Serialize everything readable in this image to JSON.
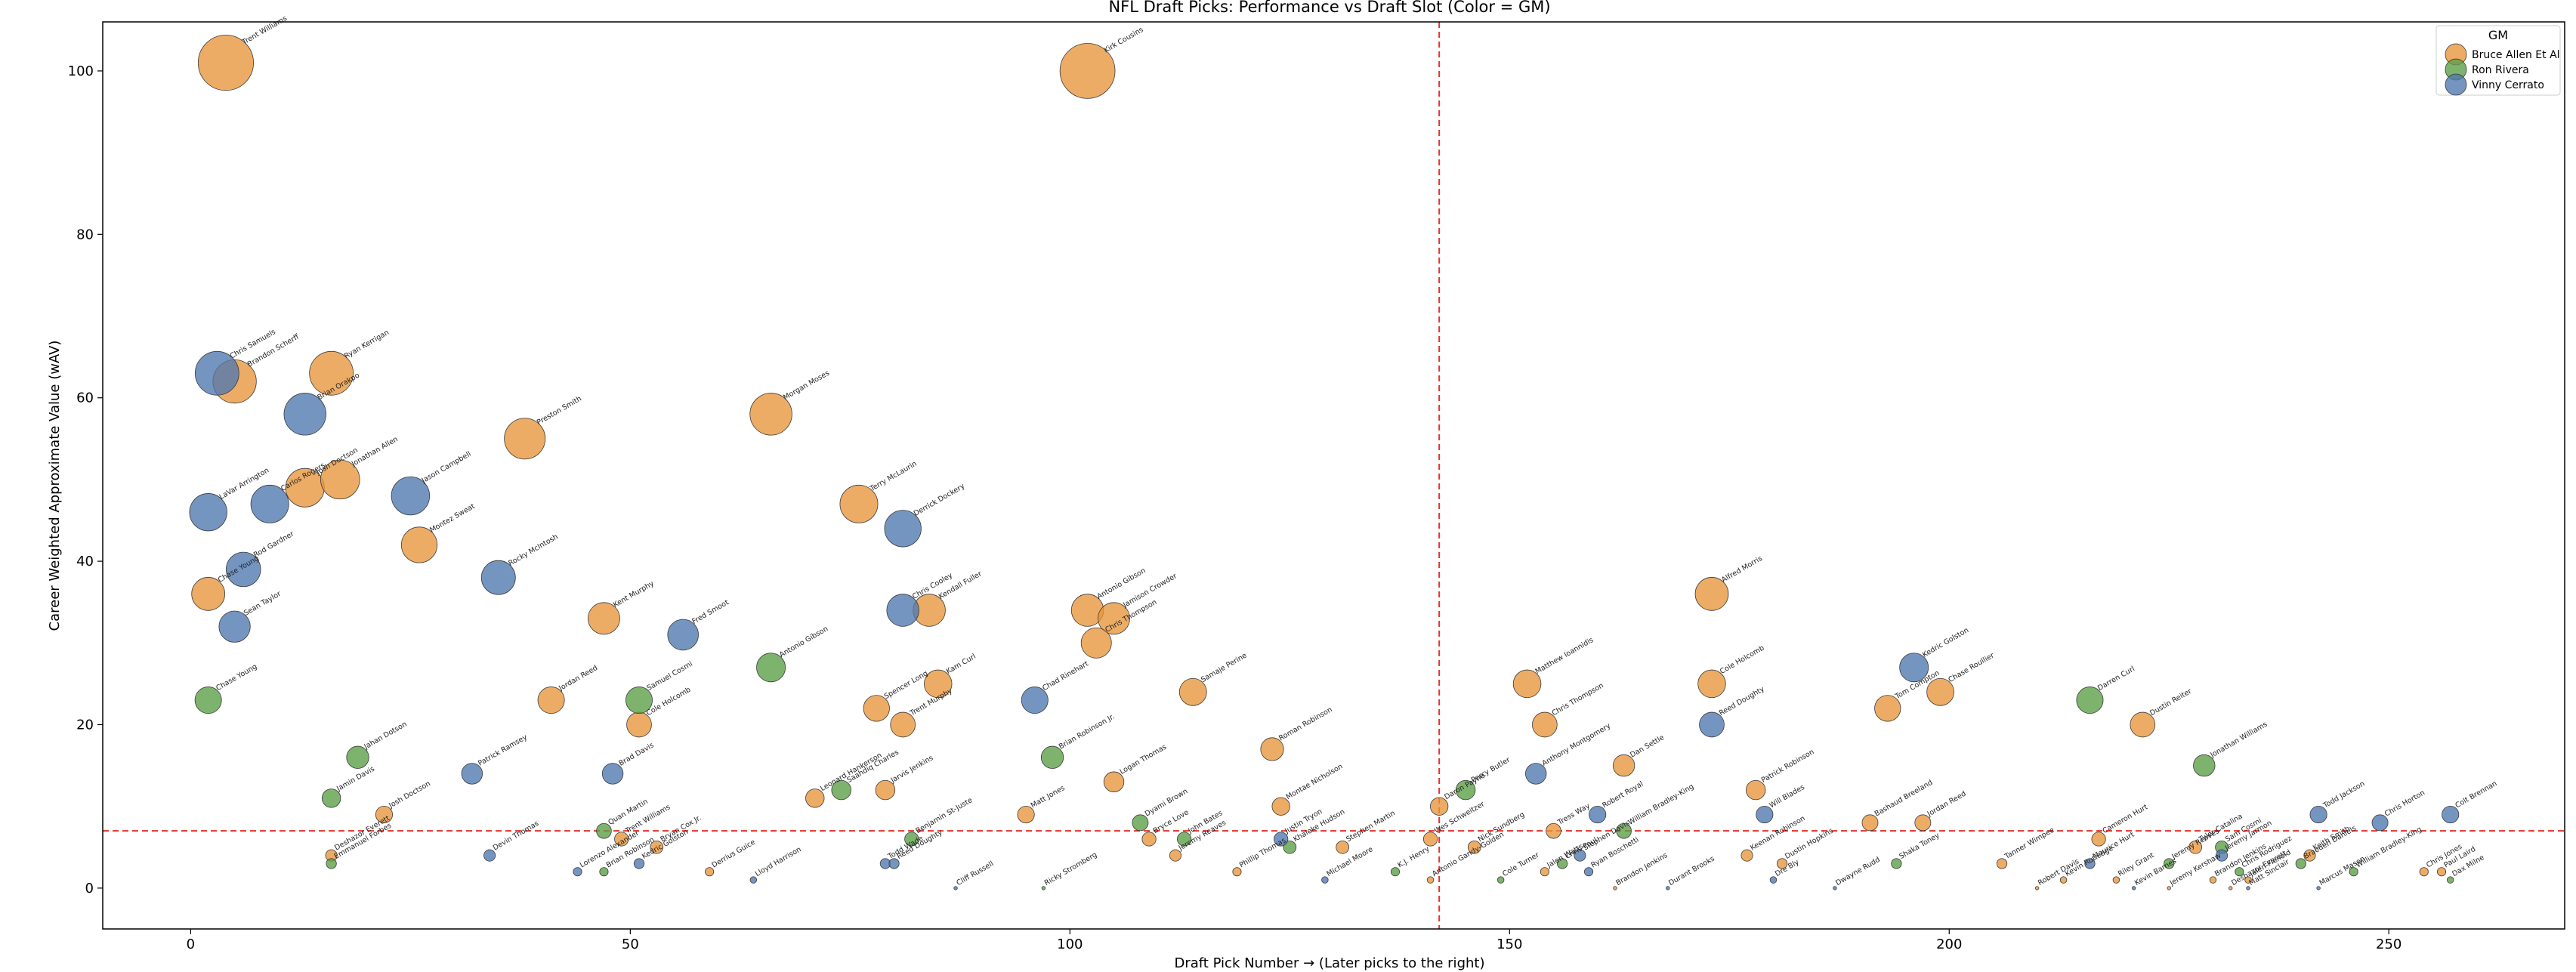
{
  "chart_data": {
    "type": "scatter",
    "title": "NFL Draft Picks: Performance vs Draft Slot (Color = GM)",
    "xlabel": "Draft Pick Number → (Later picks to the right)",
    "ylabel": "Career Weighted Approximate Value (wAV)",
    "xlim": [
      -10,
      270
    ],
    "ylim": [
      -5,
      106
    ],
    "xticks": [
      0,
      50,
      100,
      150,
      200,
      250
    ],
    "yticks": [
      0,
      20,
      40,
      60,
      80,
      100
    ],
    "grid": false,
    "reference_lines": {
      "vertical_x": 142,
      "horizontal_y": 7
    },
    "legend": {
      "title": "GM",
      "placement": "top-right",
      "entries": [
        "Bruce Allen Et Al",
        "Ron Rivera",
        "Vinny Cerrato"
      ]
    },
    "colors": {
      "Bruce Allen Et Al": "#e8953a",
      "Ron Rivera": "#5a9e44",
      "Vinny Cerrato": "#4e77b0"
    },
    "series": [
      {
        "name": "Bruce Allen Et Al",
        "points": [
          {
            "x": 4,
            "y": 101,
            "label": "Trent Williams"
          },
          {
            "x": 5,
            "y": 62,
            "label": "Brandon Scherff"
          },
          {
            "x": 16,
            "y": 63,
            "label": "Ryan Kerrigan"
          },
          {
            "x": 13,
            "y": 49,
            "label": "Josh Doctson"
          },
          {
            "x": 17,
            "y": 50,
            "label": "Jonathan Allen"
          },
          {
            "x": 2,
            "y": 36,
            "label": "Chase Young"
          },
          {
            "x": 26,
            "y": 42,
            "label": "Montez Sweat"
          },
          {
            "x": 38,
            "y": 55,
            "label": "Preston Smith"
          },
          {
            "x": 66,
            "y": 58,
            "label": "Morgan Moses"
          },
          {
            "x": 76,
            "y": 47,
            "label": "Terry McLaurin"
          },
          {
            "x": 47,
            "y": 33,
            "label": "Kent Murphy"
          },
          {
            "x": 41,
            "y": 23,
            "label": "Jordan Reed"
          },
          {
            "x": 51,
            "y": 20,
            "label": "Cole Holcomb"
          },
          {
            "x": 84,
            "y": 34,
            "label": "Kendall Fuller"
          },
          {
            "x": 78,
            "y": 22,
            "label": "Spencer Long"
          },
          {
            "x": 85,
            "y": 25,
            "label": "Kam Curl"
          },
          {
            "x": 81,
            "y": 20,
            "label": "Trent Murphy"
          },
          {
            "x": 102,
            "y": 100,
            "label": "Kirk Cousins"
          },
          {
            "x": 102,
            "y": 34,
            "label": "Antonio Gibson"
          },
          {
            "x": 105,
            "y": 33,
            "label": "Jamison Crowder"
          },
          {
            "x": 103,
            "y": 30,
            "label": "Chris Thompson"
          },
          {
            "x": 114,
            "y": 24,
            "label": "Samaje Perine"
          },
          {
            "x": 105,
            "y": 13,
            "label": "Logan Thomas"
          },
          {
            "x": 123,
            "y": 17,
            "label": "Roman Robinson"
          },
          {
            "x": 71,
            "y": 11,
            "label": "Leonard Hankerson"
          },
          {
            "x": 79,
            "y": 12,
            "label": "Jarvis Jenkins"
          },
          {
            "x": 109,
            "y": 6,
            "label": "Bryce Love"
          },
          {
            "x": 112,
            "y": 4,
            "label": "Jeremy Reaves"
          },
          {
            "x": 124,
            "y": 10,
            "label": "Montae Nicholson"
          },
          {
            "x": 131,
            "y": 5,
            "label": "Stephen Martin"
          },
          {
            "x": 142,
            "y": 10,
            "label": "Daron Payne"
          },
          {
            "x": 141,
            "y": 6,
            "label": "Wes Schweitzer"
          },
          {
            "x": 146,
            "y": 5,
            "label": "Nick Sundberg"
          },
          {
            "x": 141,
            "y": 1,
            "label": "Antonio Gandy-Golden"
          },
          {
            "x": 152,
            "y": 25,
            "label": "Matthew Ioannidis"
          },
          {
            "x": 154,
            "y": 20,
            "label": "Chris Thompson"
          },
          {
            "x": 155,
            "y": 7,
            "label": "Tress Way"
          },
          {
            "x": 154,
            "y": 2,
            "label": "Jalen Watts"
          },
          {
            "x": 163,
            "y": 15,
            "label": "Dan Settle"
          },
          {
            "x": 173,
            "y": 36,
            "label": "Alfred Morris"
          },
          {
            "x": 173,
            "y": 25,
            "label": "Cole Holcomb"
          },
          {
            "x": 178,
            "y": 12,
            "label": "Patrick Robinson"
          },
          {
            "x": 177,
            "y": 4,
            "label": "Keenan Robinson"
          },
          {
            "x": 181,
            "y": 3,
            "label": "Dustin Hopkins"
          },
          {
            "x": 193,
            "y": 22,
            "label": "Tom Compton"
          },
          {
            "x": 199,
            "y": 24,
            "label": "Chase Roullier"
          },
          {
            "x": 191,
            "y": 8,
            "label": "Bashaud Breeland"
          },
          {
            "x": 197,
            "y": 8,
            "label": "Jordan Reed"
          },
          {
            "x": 206,
            "y": 3,
            "label": "Tanner Wimpee"
          },
          {
            "x": 210,
            "y": 0,
            "label": "Robert Davis"
          },
          {
            "x": 213,
            "y": 1,
            "label": "Kevin Rutledge"
          },
          {
            "x": 217,
            "y": 6,
            "label": "Cameron Hurt"
          },
          {
            "x": 219,
            "y": 1,
            "label": "Riley Grant"
          },
          {
            "x": 222,
            "y": 20,
            "label": "Dustin Reiter"
          },
          {
            "x": 225,
            "y": 0,
            "label": "Jeremy Kershaw"
          },
          {
            "x": 228,
            "y": 5,
            "label": "Tyler Catalina"
          },
          {
            "x": 230,
            "y": 1,
            "label": "Brandon Jenkins"
          },
          {
            "x": 232,
            "y": 0,
            "label": "Deshazor Everett"
          },
          {
            "x": 234,
            "y": 1,
            "label": "Jalen Flenoid"
          },
          {
            "x": 241,
            "y": 4,
            "label": "Keith Smith"
          },
          {
            "x": 254,
            "y": 2,
            "label": "Chris Jones"
          },
          {
            "x": 256,
            "y": 2,
            "label": "Paul Laird"
          },
          {
            "x": 16,
            "y": 4,
            "label": "Deshazor Everett"
          },
          {
            "x": 22,
            "y": 9,
            "label": "Josh Doctson"
          },
          {
            "x": 49,
            "y": 6,
            "label": "Trent Williams"
          },
          {
            "x": 53,
            "y": 5,
            "label": "Bryan Cox Jr."
          },
          {
            "x": 59,
            "y": 2,
            "label": "Derrius Guice"
          },
          {
            "x": 95,
            "y": 9,
            "label": "Matt Jones"
          },
          {
            "x": 119,
            "y": 2,
            "label": "Phillip Thomas"
          },
          {
            "x": 162,
            "y": 0,
            "label": "Brandon Jenkins"
          }
        ]
      },
      {
        "name": "Ron Rivera",
        "points": [
          {
            "x": 2,
            "y": 23,
            "label": "Chase Young"
          },
          {
            "x": 19,
            "y": 16,
            "label": "Jahan Dotson"
          },
          {
            "x": 16,
            "y": 11,
            "label": "Jamin Davis"
          },
          {
            "x": 16,
            "y": 3,
            "label": "Emmanuel Forbes"
          },
          {
            "x": 51,
            "y": 23,
            "label": "Samuel Cosmi"
          },
          {
            "x": 47,
            "y": 7,
            "label": "Quan Martin"
          },
          {
            "x": 47,
            "y": 2,
            "label": "Brian Robinson"
          },
          {
            "x": 66,
            "y": 27,
            "label": "Antonio Gibson"
          },
          {
            "x": 74,
            "y": 12,
            "label": "Saahdiq Charles"
          },
          {
            "x": 82,
            "y": 6,
            "label": "Benjamin St-Juste"
          },
          {
            "x": 98,
            "y": 16,
            "label": "Brian Robinson Jr."
          },
          {
            "x": 97,
            "y": 0,
            "label": "Ricky Stromberg"
          },
          {
            "x": 108,
            "y": 8,
            "label": "Dyami Brown"
          },
          {
            "x": 113,
            "y": 6,
            "label": "John Bates"
          },
          {
            "x": 125,
            "y": 5,
            "label": "Khaleke Hudson"
          },
          {
            "x": 137,
            "y": 2,
            "label": "K.J. Henry"
          },
          {
            "x": 145,
            "y": 12,
            "label": "Percy Butler"
          },
          {
            "x": 149,
            "y": 1,
            "label": "Cole Turner"
          },
          {
            "x": 156,
            "y": 3,
            "label": "Chris Paul"
          },
          {
            "x": 163,
            "y": 7,
            "label": "William Bradley-King"
          },
          {
            "x": 216,
            "y": 23,
            "label": "Darren Curl"
          },
          {
            "x": 229,
            "y": 15,
            "label": "Jonathan Williams"
          },
          {
            "x": 225,
            "y": 3,
            "label": "Jeremy Reaves"
          },
          {
            "x": 231,
            "y": 5,
            "label": "Sam Cosmi"
          },
          {
            "x": 233,
            "y": 2,
            "label": "Chris Rodriguez"
          },
          {
            "x": 240,
            "y": 3,
            "label": "Braeden Daniels"
          },
          {
            "x": 246,
            "y": 2,
            "label": "William Bradley-King"
          },
          {
            "x": 257,
            "y": 1,
            "label": "Dax Milne"
          },
          {
            "x": 194,
            "y": 3,
            "label": "Shaka Toney"
          }
        ]
      },
      {
        "name": "Vinny Cerrato",
        "points": [
          {
            "x": 3,
            "y": 63,
            "label": "Chris Samuels"
          },
          {
            "x": 13,
            "y": 58,
            "label": "Brian Orakpo"
          },
          {
            "x": 2,
            "y": 46,
            "label": "LaVar Arrington"
          },
          {
            "x": 9,
            "y": 47,
            "label": "Carlos Rogers"
          },
          {
            "x": 6,
            "y": 39,
            "label": "Rod Gardner"
          },
          {
            "x": 5,
            "y": 32,
            "label": "Sean Taylor"
          },
          {
            "x": 25,
            "y": 48,
            "label": "Jason Campbell"
          },
          {
            "x": 35,
            "y": 38,
            "label": "Rocky McIntosh"
          },
          {
            "x": 56,
            "y": 31,
            "label": "Fred Smoot"
          },
          {
            "x": 81,
            "y": 44,
            "label": "Derrick Dockery"
          },
          {
            "x": 81,
            "y": 34,
            "label": "Chris Cooley"
          },
          {
            "x": 32,
            "y": 14,
            "label": "Patrick Ramsey"
          },
          {
            "x": 48,
            "y": 14,
            "label": "Brad Davis"
          },
          {
            "x": 34,
            "y": 4,
            "label": "Devin Thomas"
          },
          {
            "x": 44,
            "y": 2,
            "label": "Lorenzo Alexander"
          },
          {
            "x": 51,
            "y": 3,
            "label": "Kedric Golston"
          },
          {
            "x": 64,
            "y": 1,
            "label": "Lloyd Harrison"
          },
          {
            "x": 79,
            "y": 3,
            "label": "Todd Wade"
          },
          {
            "x": 80,
            "y": 3,
            "label": "Reed Doughty"
          },
          {
            "x": 87,
            "y": 0,
            "label": "Cliff Russell"
          },
          {
            "x": 96,
            "y": 23,
            "label": "Chad Rinehart"
          },
          {
            "x": 124,
            "y": 6,
            "label": "Justin Tryon"
          },
          {
            "x": 129,
            "y": 1,
            "label": "Michael Moore"
          },
          {
            "x": 153,
            "y": 14,
            "label": "Anthony Montgomery"
          },
          {
            "x": 160,
            "y": 9,
            "label": "Robert Royal"
          },
          {
            "x": 158,
            "y": 4,
            "label": "Stephen Davis"
          },
          {
            "x": 159,
            "y": 2,
            "label": "Ryan Boschetti"
          },
          {
            "x": 168,
            "y": 0,
            "label": "Durant Brooks"
          },
          {
            "x": 173,
            "y": 20,
            "label": "Reed Doughty"
          },
          {
            "x": 179,
            "y": 9,
            "label": "Will Blades"
          },
          {
            "x": 180,
            "y": 1,
            "label": "Dre Bly"
          },
          {
            "x": 196,
            "y": 27,
            "label": "Kedric Golston"
          },
          {
            "x": 216,
            "y": 3,
            "label": "Maurice Hurt"
          },
          {
            "x": 221,
            "y": 0,
            "label": "Kevin Barnes"
          },
          {
            "x": 231,
            "y": 4,
            "label": "Jeremy Jarmon"
          },
          {
            "x": 242,
            "y": 9,
            "label": "Todd Jackson"
          },
          {
            "x": 242,
            "y": 0,
            "label": "Marcus Mason"
          },
          {
            "x": 249,
            "y": 8,
            "label": "Chris Horton"
          },
          {
            "x": 257,
            "y": 9,
            "label": "Colt Brennan"
          },
          {
            "x": 187,
            "y": 0,
            "label": "Dwayne Rudd"
          },
          {
            "x": 234,
            "y": 0,
            "label": "Matt Sinclair"
          }
        ]
      }
    ]
  }
}
